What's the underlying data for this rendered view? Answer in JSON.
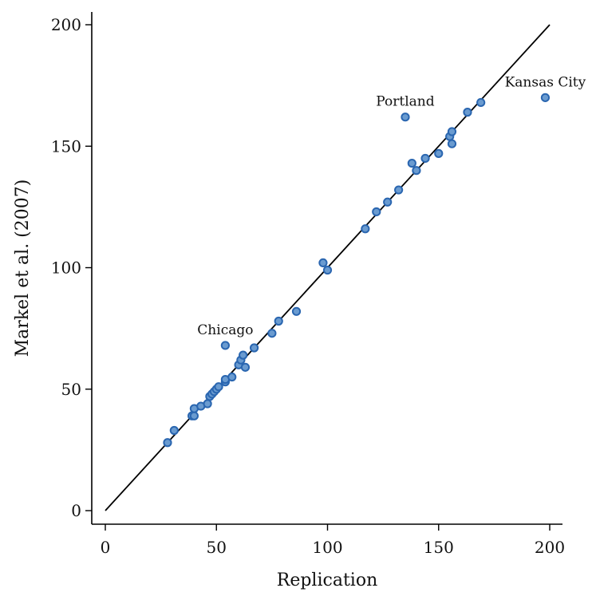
{
  "chart_data": {
    "type": "scatter",
    "title": "",
    "xlabel": "Replication",
    "ylabel": "Markel et al. (2007)",
    "xlim": [
      -5,
      205
    ],
    "ylim": [
      -5,
      205
    ],
    "x_ticks": [
      0,
      50,
      100,
      150,
      200
    ],
    "y_ticks": [
      0,
      50,
      100,
      150,
      200
    ],
    "grid": false,
    "legend": "none",
    "reference_line": {
      "from": [
        0,
        0
      ],
      "to": [
        200,
        200
      ],
      "color": "#000000"
    },
    "marker": {
      "fill": "#6a9bd0",
      "stroke": "#2a66b0"
    },
    "points": [
      {
        "x": 28,
        "y": 28
      },
      {
        "x": 31,
        "y": 33
      },
      {
        "x": 39,
        "y": 39
      },
      {
        "x": 40,
        "y": 39
      },
      {
        "x": 40,
        "y": 42
      },
      {
        "x": 43,
        "y": 43
      },
      {
        "x": 46,
        "y": 44
      },
      {
        "x": 47,
        "y": 47
      },
      {
        "x": 48,
        "y": 48
      },
      {
        "x": 49,
        "y": 49
      },
      {
        "x": 50,
        "y": 50
      },
      {
        "x": 51,
        "y": 51
      },
      {
        "x": 54,
        "y": 53
      },
      {
        "x": 54,
        "y": 54
      },
      {
        "x": 54,
        "y": 68,
        "label": "Chicago"
      },
      {
        "x": 57,
        "y": 55
      },
      {
        "x": 60,
        "y": 60
      },
      {
        "x": 61,
        "y": 62
      },
      {
        "x": 62,
        "y": 64
      },
      {
        "x": 63,
        "y": 59
      },
      {
        "x": 67,
        "y": 67
      },
      {
        "x": 75,
        "y": 73
      },
      {
        "x": 78,
        "y": 78
      },
      {
        "x": 86,
        "y": 82
      },
      {
        "x": 98,
        "y": 102
      },
      {
        "x": 100,
        "y": 99
      },
      {
        "x": 117,
        "y": 116
      },
      {
        "x": 122,
        "y": 123
      },
      {
        "x": 127,
        "y": 127
      },
      {
        "x": 132,
        "y": 132
      },
      {
        "x": 135,
        "y": 162,
        "label": "Portland"
      },
      {
        "x": 138,
        "y": 143
      },
      {
        "x": 140,
        "y": 140
      },
      {
        "x": 144,
        "y": 145
      },
      {
        "x": 150,
        "y": 147
      },
      {
        "x": 155,
        "y": 154
      },
      {
        "x": 156,
        "y": 156
      },
      {
        "x": 156,
        "y": 151
      },
      {
        "x": 163,
        "y": 164
      },
      {
        "x": 169,
        "y": 168
      },
      {
        "x": 198,
        "y": 170,
        "label": "Kansas City"
      }
    ]
  }
}
